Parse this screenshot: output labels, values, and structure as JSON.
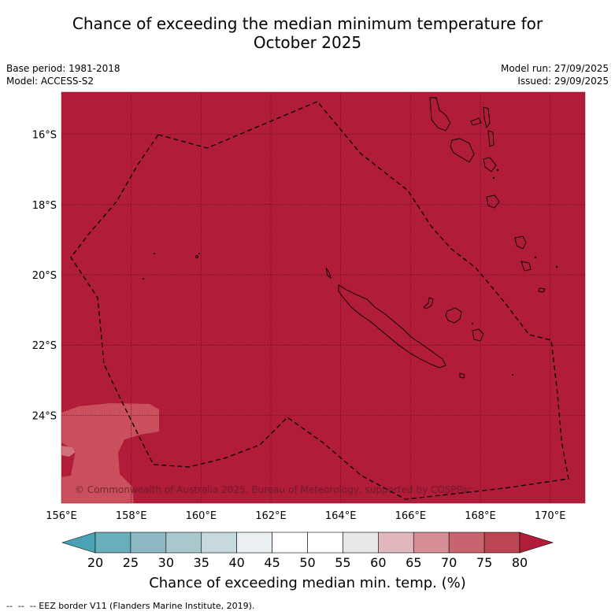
{
  "title_line1": "Chance of exceeding the median minimum temperature for",
  "title_line2": "October 2025",
  "meta_left": {
    "base_period": "Base period: 1981-2018",
    "model": "Model: ACCESS-S2"
  },
  "meta_right": {
    "model_run": "Model run: 27/09/2025",
    "issued": "Issued: 29/09/2025"
  },
  "map": {
    "lon_range": [
      156,
      171
    ],
    "lat_range": [
      -26.5,
      -14.8
    ],
    "lat_ticks": [
      {
        "value": -16,
        "label": "16°S"
      },
      {
        "value": -18,
        "label": "18°S"
      },
      {
        "value": -20,
        "label": "20°S"
      },
      {
        "value": -22,
        "label": "22°S"
      },
      {
        "value": -24,
        "label": "24°S"
      }
    ],
    "lon_ticks": [
      {
        "value": 156,
        "label": "156°E"
      },
      {
        "value": 158,
        "label": "158°E"
      },
      {
        "value": 160,
        "label": "160°E"
      },
      {
        "value": 162,
        "label": "162°E"
      },
      {
        "value": 164,
        "label": "164°E"
      },
      {
        "value": 166,
        "label": "166°E"
      },
      {
        "value": 168,
        "label": "168°E"
      },
      {
        "value": 170,
        "label": "170°E"
      }
    ],
    "field_value_label": "80",
    "copyright": "© Commonwealth of Australia 2025, Bureau of Meteorology, supported by COSPPac"
  },
  "colorbar": {
    "ticks": [
      "20",
      "25",
      "30",
      "35",
      "40",
      "45",
      "50",
      "55",
      "60",
      "65",
      "70",
      "75",
      "80"
    ],
    "colors": [
      "#6aaebb",
      "#8bb8c2",
      "#a9c8cd",
      "#c6d9dc",
      "#eaf0f1",
      "#ffffff",
      "#ffffff",
      "#e8e8e8",
      "#e1b8bd",
      "#d78f97",
      "#c9646f",
      "#bc4552"
    ],
    "under_color": "#4aa3b5",
    "over_color": "#b11c38",
    "title": "Chance of exceeding median min. temp. (%)"
  },
  "colors": {
    "high": "#b11c38",
    "mid": "#c9505c"
  },
  "footer": "--  --  -- EEZ border V11 (Flanders Marine Institute, 2019)."
}
